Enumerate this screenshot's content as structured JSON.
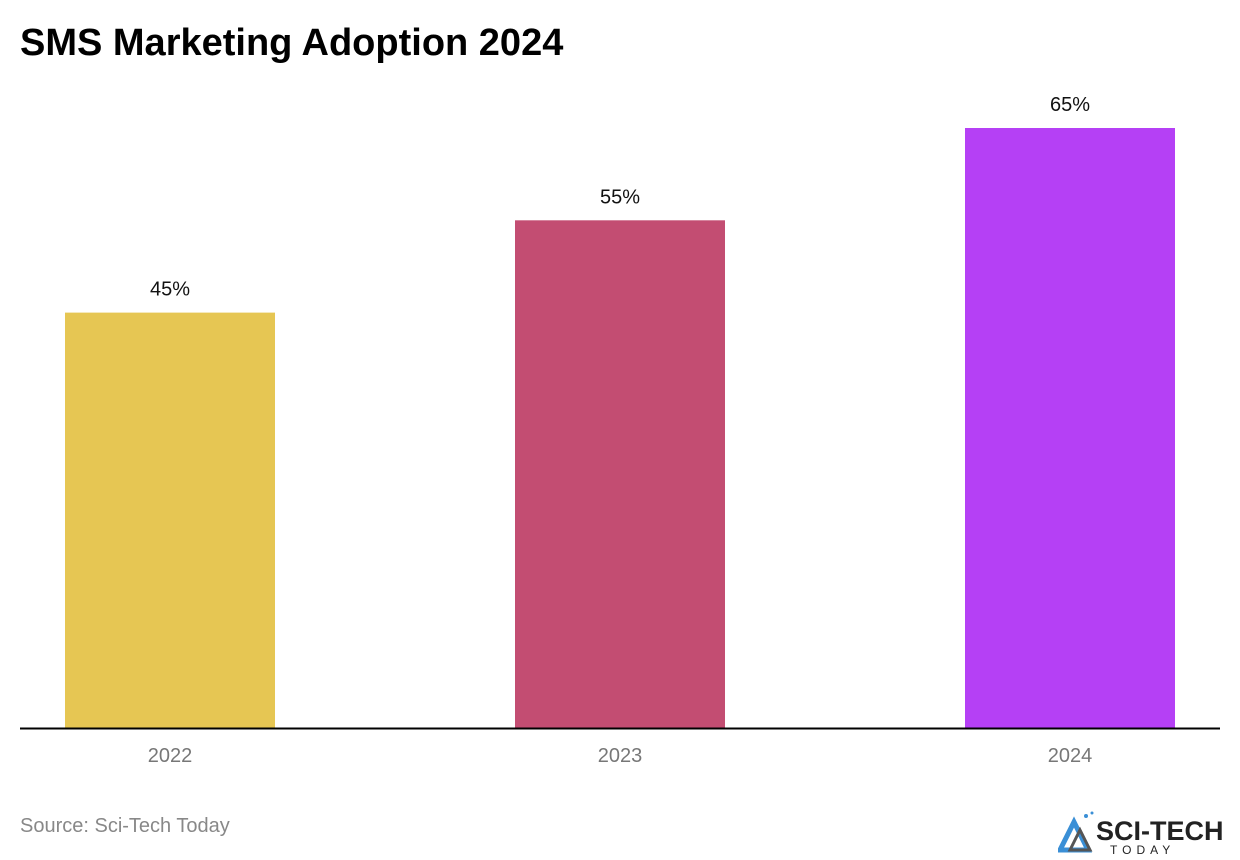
{
  "chart_data": {
    "type": "bar",
    "title": "SMS Marketing Adoption 2024",
    "categories": [
      "2022",
      "2023",
      "2024"
    ],
    "values": [
      45,
      55,
      65
    ],
    "data_labels": [
      "45%",
      "55%",
      "65%"
    ],
    "colors": [
      "#E6C653",
      "#C34D72",
      "#B540F5"
    ],
    "xlabel": "",
    "ylabel": "",
    "ylim": [
      0,
      65
    ],
    "grid": false,
    "legend": "none"
  },
  "footer": {
    "source": "Source: Sci-Tech Today",
    "logo_text": "SCI-TECH TODAY"
  }
}
